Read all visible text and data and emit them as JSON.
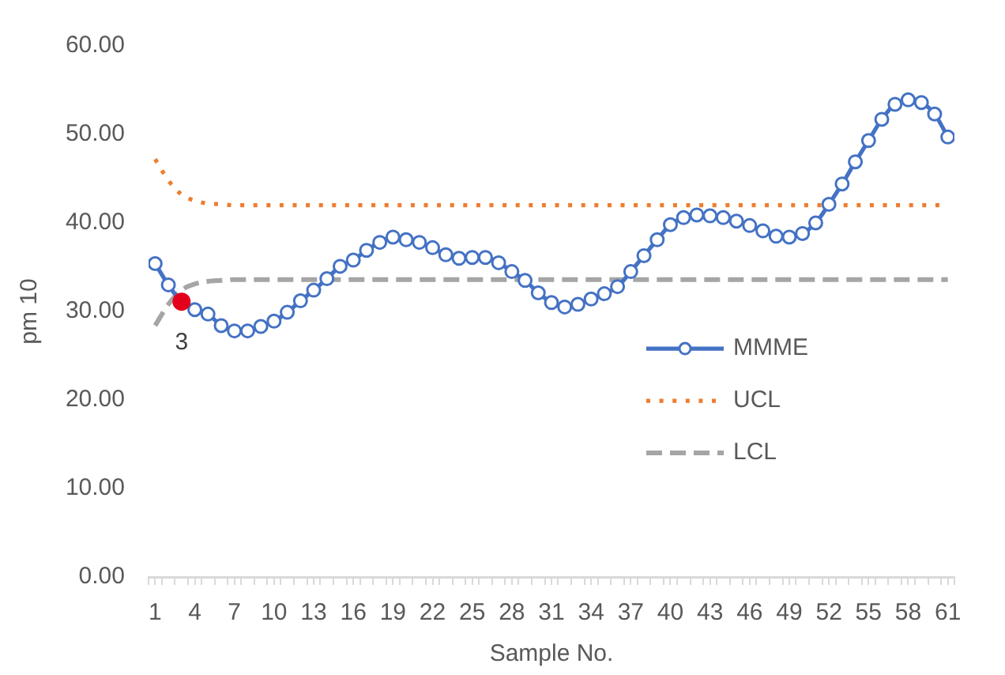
{
  "chart_data": {
    "type": "line",
    "xlabel": "Sample No.",
    "ylabel": "pm 10",
    "x": [
      1,
      2,
      3,
      4,
      5,
      6,
      7,
      8,
      9,
      10,
      11,
      12,
      13,
      14,
      15,
      16,
      17,
      18,
      19,
      20,
      21,
      22,
      23,
      24,
      25,
      26,
      27,
      28,
      29,
      30,
      31,
      32,
      33,
      34,
      35,
      36,
      37,
      38,
      39,
      40,
      41,
      42,
      43,
      44,
      45,
      46,
      47,
      48,
      49,
      50,
      51,
      52,
      53,
      54,
      55,
      56,
      57,
      58,
      59,
      60,
      61
    ],
    "xlim": [
      0.5,
      61.5
    ],
    "xticks": [
      {
        "value": 0.5,
        "label": null
      },
      1,
      {
        "value": 1.5,
        "label": null
      },
      {
        "value": 2.5,
        "label": null
      },
      {
        "value": 3.5,
        "label": null
      },
      4,
      {
        "value": 4.5,
        "label": null
      },
      {
        "value": 5.5,
        "label": null
      },
      {
        "value": 6.5,
        "label": null
      },
      7,
      {
        "value": 7.5,
        "label": null
      },
      {
        "value": 8.5,
        "label": null
      },
      {
        "value": 9.5,
        "label": null
      },
      10,
      {
        "value": 10.5,
        "label": null
      },
      {
        "value": 11.5,
        "label": null
      },
      {
        "value": 12.5,
        "label": null
      },
      13,
      {
        "value": 13.5,
        "label": null
      },
      {
        "value": 14.5,
        "label": null
      },
      {
        "value": 15.5,
        "label": null
      },
      16,
      {
        "value": 16.5,
        "label": null
      },
      {
        "value": 17.5,
        "label": null
      },
      {
        "value": 18.5,
        "label": null
      },
      19,
      {
        "value": 19.5,
        "label": null
      },
      {
        "value": 20.5,
        "label": null
      },
      {
        "value": 21.5,
        "label": null
      },
      22,
      {
        "value": 22.5,
        "label": null
      },
      {
        "value": 23.5,
        "label": null
      },
      {
        "value": 24.5,
        "label": null
      },
      25,
      {
        "value": 25.5,
        "label": null
      },
      {
        "value": 26.5,
        "label": null
      },
      {
        "value": 27.5,
        "label": null
      },
      28,
      {
        "value": 28.5,
        "label": null
      },
      {
        "value": 29.5,
        "label": null
      },
      {
        "value": 30.5,
        "label": null
      },
      31,
      {
        "value": 31.5,
        "label": null
      },
      {
        "value": 32.5,
        "label": null
      },
      {
        "value": 33.5,
        "label": null
      },
      34,
      {
        "value": 34.5,
        "label": null
      },
      {
        "value": 35.5,
        "label": null
      },
      {
        "value": 36.5,
        "label": null
      },
      37,
      {
        "value": 37.5,
        "label": null
      },
      {
        "value": 38.5,
        "label": null
      },
      {
        "value": 39.5,
        "label": null
      },
      40,
      {
        "value": 40.5,
        "label": null
      },
      {
        "value": 41.5,
        "label": null
      },
      {
        "value": 42.5,
        "label": null
      },
      43,
      {
        "value": 43.5,
        "label": null
      },
      {
        "value": 44.5,
        "label": null
      },
      {
        "value": 45.5,
        "label": null
      },
      46,
      {
        "value": 46.5,
        "label": null
      },
      {
        "value": 47.5,
        "label": null
      },
      {
        "value": 48.5,
        "label": null
      },
      49,
      {
        "value": 49.5,
        "label": null
      },
      {
        "value": 50.5,
        "label": null
      },
      {
        "value": 51.5,
        "label": null
      },
      52,
      {
        "value": 52.5,
        "label": null
      },
      {
        "value": 53.5,
        "label": null
      },
      {
        "value": 54.5,
        "label": null
      },
      55,
      {
        "value": 55.5,
        "label": null
      },
      {
        "value": 56.5,
        "label": null
      },
      {
        "value": 57.5,
        "label": null
      },
      58,
      {
        "value": 58.5,
        "label": null
      },
      {
        "value": 59.5,
        "label": null
      },
      {
        "value": 60.5,
        "label": null
      },
      61,
      {
        "value": 61.5,
        "label": null
      }
    ],
    "ylim": [
      0,
      60
    ],
    "yticks": [
      {
        "value": 0,
        "label": "0.00"
      },
      {
        "value": 10,
        "label": "10.00"
      },
      {
        "value": 20,
        "label": "20.00"
      },
      {
        "value": 30,
        "label": "30.00"
      },
      {
        "value": 40,
        "label": "40.00"
      },
      {
        "value": 50,
        "label": "50.00"
      },
      {
        "value": 60,
        "label": "60.00"
      }
    ],
    "grid": false,
    "legend": "right",
    "series": [
      {
        "name": "MMME",
        "color": "#4472c4",
        "marker": "circle",
        "line_style": "solid",
        "values": [
          35.4,
          33.0,
          31.1,
          30.2,
          29.7,
          28.4,
          27.8,
          27.8,
          28.3,
          28.9,
          29.9,
          31.2,
          32.4,
          33.7,
          35.1,
          35.8,
          36.9,
          37.8,
          38.4,
          38.1,
          37.8,
          37.2,
          36.4,
          36.0,
          36.1,
          36.1,
          35.5,
          34.5,
          33.5,
          32.1,
          31.0,
          30.5,
          30.8,
          31.4,
          32.0,
          32.8,
          34.5,
          36.3,
          38.1,
          39.8,
          40.6,
          40.9,
          40.8,
          40.6,
          40.2,
          39.7,
          39.1,
          38.5,
          38.4,
          38.8,
          40.0,
          42.1,
          44.4,
          46.9,
          49.3,
          51.7,
          53.4,
          53.9,
          53.6,
          52.3,
          49.7
        ]
      },
      {
        "name": "UCL",
        "color": "#ed7d31",
        "marker": "none",
        "line_style": "dotted",
        "values": [
          47.2,
          44.8,
          43.2,
          42.5,
          42.2,
          42.1,
          42.0,
          42.0,
          42.0,
          42.0,
          42.0,
          42.0,
          42.0,
          42.0,
          42.0,
          42.0,
          42.0,
          42.0,
          42.0,
          42.0,
          42.0,
          42.0,
          42.0,
          42.0,
          42.0,
          42.0,
          42.0,
          42.0,
          42.0,
          42.0,
          42.0,
          42.0,
          42.0,
          42.0,
          42.0,
          42.0,
          42.0,
          42.0,
          42.0,
          42.0,
          42.0,
          42.0,
          42.0,
          42.0,
          42.0,
          42.0,
          42.0,
          42.0,
          42.0,
          42.0,
          42.0,
          42.0,
          42.0,
          42.0,
          42.0,
          42.0,
          42.0,
          42.0,
          42.0,
          42.0,
          42.0
        ]
      },
      {
        "name": "LCL",
        "color": "#a5a5a5",
        "marker": "none",
        "line_style": "dashed",
        "values": [
          28.4,
          30.8,
          32.4,
          33.1,
          33.4,
          33.5,
          33.6,
          33.6,
          33.6,
          33.6,
          33.6,
          33.6,
          33.6,
          33.6,
          33.6,
          33.6,
          33.6,
          33.6,
          33.6,
          33.6,
          33.6,
          33.6,
          33.6,
          33.6,
          33.6,
          33.6,
          33.6,
          33.6,
          33.6,
          33.6,
          33.6,
          33.6,
          33.6,
          33.6,
          33.6,
          33.6,
          33.6,
          33.6,
          33.6,
          33.6,
          33.6,
          33.6,
          33.6,
          33.6,
          33.6,
          33.6,
          33.6,
          33.6,
          33.6,
          33.6,
          33.6,
          33.6,
          33.6,
          33.6,
          33.6,
          33.6,
          33.6,
          33.6,
          33.6,
          33.6,
          33.6
        ]
      },
      {
        "type": "scatter",
        "color": "#e3001b",
        "marker": "circle",
        "x": [
          3
        ],
        "values": [
          31.1
        ]
      }
    ],
    "annotations": [
      {
        "text": "3",
        "x": 3,
        "y": 31.1
      }
    ]
  }
}
